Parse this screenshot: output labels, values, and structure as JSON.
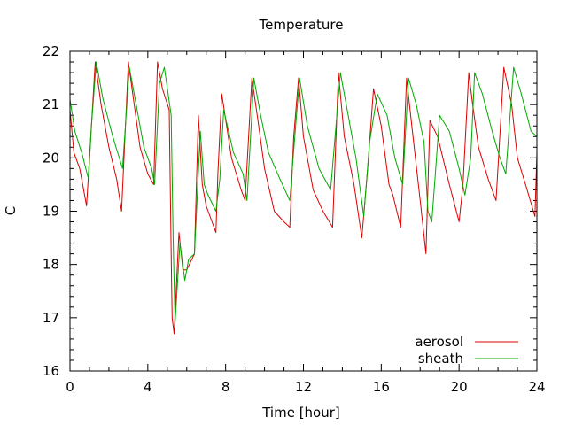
{
  "chart_data": {
    "type": "line",
    "title": "Temperature",
    "xlabel": "Time [hour]",
    "ylabel": "C",
    "xlim": [
      0,
      24
    ],
    "ylim": [
      16,
      22
    ],
    "xticks": [
      0,
      4,
      8,
      12,
      16,
      20,
      24
    ],
    "yticks": [
      16,
      17,
      18,
      19,
      20,
      21,
      22
    ],
    "grid": false,
    "legend": "bottom-right",
    "series": [
      {
        "name": "aerosol",
        "color": "#dd0000",
        "x": [
          0.0,
          0.2,
          0.5,
          0.85,
          1.0,
          1.3,
          1.6,
          2.0,
          2.4,
          2.65,
          3.0,
          3.3,
          3.6,
          4.0,
          4.3,
          4.5,
          4.75,
          5.1,
          5.2,
          5.25,
          5.35,
          5.6,
          5.8,
          6.0,
          6.4,
          6.6,
          6.8,
          7.0,
          7.5,
          7.6,
          7.8,
          8.3,
          8.8,
          9.0,
          9.35,
          9.7,
          10.0,
          10.5,
          11.0,
          11.3,
          11.5,
          11.75,
          12.0,
          12.5,
          13.0,
          13.5,
          13.8,
          14.1,
          14.6,
          15.0,
          15.3,
          15.6,
          16.0,
          16.4,
          16.6,
          17.0,
          17.3,
          17.6,
          18.0,
          18.3,
          18.5,
          18.9,
          19.5,
          20.0,
          20.2,
          20.5,
          20.7,
          21.0,
          21.5,
          21.9,
          22.3,
          22.7,
          23.0,
          23.5,
          23.9,
          24.0
        ],
        "values": [
          20.9,
          20.1,
          19.8,
          19.1,
          20.0,
          21.8,
          21.0,
          20.2,
          19.6,
          19.0,
          21.8,
          21.0,
          20.2,
          19.7,
          19.5,
          21.8,
          21.3,
          20.9,
          18.2,
          17.0,
          16.7,
          18.6,
          17.9,
          17.9,
          18.2,
          20.8,
          19.5,
          19.1,
          18.6,
          19.7,
          21.2,
          20.0,
          19.4,
          19.2,
          21.5,
          20.6,
          19.8,
          19.0,
          18.8,
          18.7,
          20.4,
          21.5,
          20.4,
          19.4,
          19.0,
          18.7,
          21.6,
          20.4,
          19.5,
          18.5,
          19.8,
          21.3,
          20.6,
          19.5,
          19.3,
          18.7,
          21.5,
          20.5,
          19.2,
          18.2,
          20.7,
          20.4,
          19.5,
          18.8,
          19.5,
          21.6,
          21.0,
          20.2,
          19.6,
          19.2,
          21.7,
          21.0,
          20.0,
          19.4,
          18.9,
          20.1
        ]
      },
      {
        "name": "sheath",
        "color": "#00aa00",
        "x": [
          0.0,
          0.25,
          0.6,
          0.95,
          1.1,
          1.35,
          1.7,
          2.2,
          2.7,
          3.05,
          3.4,
          3.8,
          4.2,
          4.35,
          4.6,
          4.85,
          5.2,
          5.3,
          5.4,
          5.65,
          5.9,
          6.1,
          6.4,
          6.7,
          6.9,
          7.1,
          7.5,
          7.7,
          7.9,
          8.4,
          8.9,
          9.1,
          9.45,
          9.8,
          10.2,
          10.8,
          11.3,
          11.6,
          11.8,
          12.2,
          12.8,
          13.4,
          13.9,
          14.2,
          14.7,
          15.1,
          15.4,
          15.8,
          16.3,
          16.7,
          17.1,
          17.4,
          17.8,
          18.2,
          18.4,
          18.6,
          19.0,
          19.5,
          20.0,
          20.3,
          20.6,
          20.8,
          21.2,
          21.7,
          22.1,
          22.4,
          22.8,
          23.2,
          23.7,
          24.0
        ],
        "values": [
          21.1,
          20.5,
          20.1,
          19.6,
          20.6,
          21.8,
          21.1,
          20.4,
          19.8,
          21.7,
          21.0,
          20.2,
          19.8,
          19.5,
          21.4,
          21.7,
          20.8,
          18.5,
          16.9,
          18.4,
          17.7,
          18.1,
          18.2,
          20.5,
          19.5,
          19.3,
          19.0,
          19.6,
          20.9,
          20.1,
          19.7,
          19.2,
          21.5,
          20.8,
          20.1,
          19.6,
          19.2,
          20.6,
          21.5,
          20.6,
          19.8,
          19.4,
          21.6,
          21.0,
          20.0,
          18.9,
          20.3,
          21.2,
          20.8,
          20.0,
          19.5,
          21.5,
          21.0,
          20.3,
          19.0,
          18.8,
          20.8,
          20.5,
          19.8,
          19.3,
          20.0,
          21.6,
          21.2,
          20.5,
          20.0,
          19.7,
          21.7,
          21.2,
          20.5,
          20.4
        ]
      }
    ]
  }
}
